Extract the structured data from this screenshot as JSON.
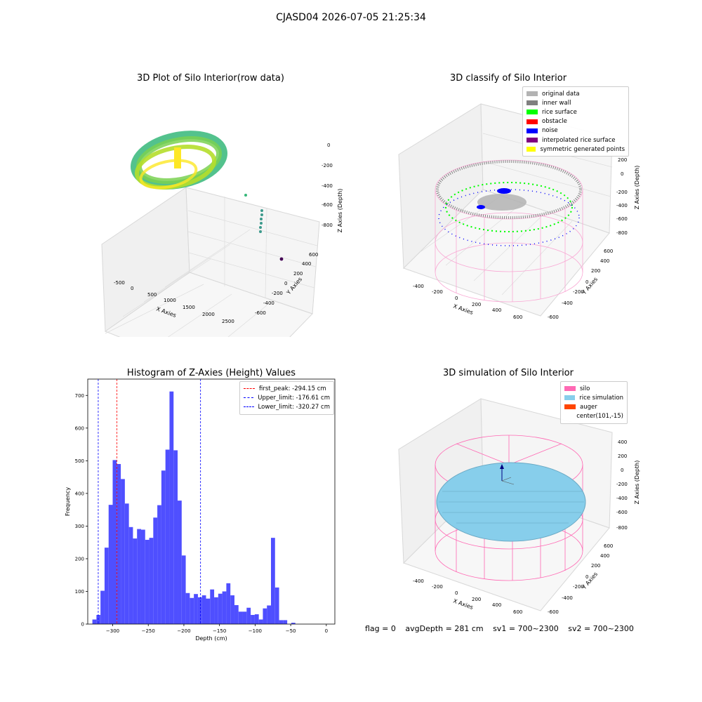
{
  "figure": {
    "title": "CJASD04 2026-07-05 21:25:34",
    "footer": {
      "flag": "flag = 0",
      "avg_depth": "avgDepth = 281 cm",
      "sv1": "sv1 = 700~2300",
      "sv2": "sv2 = 700~2300"
    }
  },
  "chart_data": [
    {
      "type": "scatter",
      "title": "3D Plot of Silo Interior(row data)",
      "xlabel": "X Axies",
      "ylabel": "Y Axies",
      "zlabel": "Z Axies (Depth)",
      "x_ticks": [
        "-500",
        "0",
        "500",
        "1000",
        "1500",
        "2000",
        "2500"
      ],
      "y_ticks": [
        "-600",
        "-400",
        "-200",
        "0",
        "200",
        "400",
        "600"
      ],
      "z_ticks": [
        "-800",
        "-600",
        "-400",
        "-200",
        "0"
      ],
      "colormap": "viridis (by depth)",
      "colors": {
        "shallow": "#fde725",
        "mid": "#7ad151",
        "deep": "#22a884",
        "outlier": "#440154"
      }
    },
    {
      "type": "scatter",
      "title": "3D classify of Silo Interior",
      "xlabel": "X Axies",
      "ylabel": "Y Axies",
      "zlabel": "Z Axies (Depth)",
      "x_ticks": [
        "-400",
        "-200",
        "0",
        "200",
        "400",
        "600"
      ],
      "y_ticks": [
        "-600",
        "-400",
        "-200",
        "0",
        "200",
        "400",
        "600"
      ],
      "z_ticks": [
        "-800",
        "-600",
        "-400",
        "-200",
        "0",
        "200"
      ],
      "legend": [
        {
          "label": "original data",
          "color": "#b3b3b3"
        },
        {
          "label": "inner wall",
          "color": "#808080"
        },
        {
          "label": "rice surface",
          "color": "#00ff00"
        },
        {
          "label": "obstacle",
          "color": "#ff0000"
        },
        {
          "label": "noise",
          "color": "#0000ff"
        },
        {
          "label": "interpolated rice surface",
          "color": "#800080"
        },
        {
          "label": "symmetric generated points",
          "color": "#ffff00"
        }
      ],
      "wireframe_color": "#f9a8d4"
    },
    {
      "type": "bar",
      "title": "Histogram of Z-Axies (Height) Values",
      "xlabel": "Depth (cm)",
      "ylabel": "Frequency",
      "xlim": [
        -335,
        12
      ],
      "ylim": [
        0,
        750
      ],
      "x_ticks": [
        -300,
        -250,
        -200,
        -150,
        -100,
        -50,
        0
      ],
      "y_ticks": [
        0,
        100,
        200,
        300,
        400,
        500,
        600,
        700
      ],
      "bar_color": "#4f4fff",
      "bin_width": 5.7,
      "bins": [
        {
          "x0": -328.5,
          "count": 14
        },
        {
          "x0": -322.8,
          "count": 28
        },
        {
          "x0": -317.1,
          "count": 102
        },
        {
          "x0": -311.4,
          "count": 234
        },
        {
          "x0": -305.7,
          "count": 365
        },
        {
          "x0": -300.0,
          "count": 502
        },
        {
          "x0": -294.3,
          "count": 490
        },
        {
          "x0": -288.6,
          "count": 444
        },
        {
          "x0": -282.9,
          "count": 369
        },
        {
          "x0": -277.2,
          "count": 297
        },
        {
          "x0": -271.5,
          "count": 262
        },
        {
          "x0": -265.8,
          "count": 291
        },
        {
          "x0": -260.1,
          "count": 289
        },
        {
          "x0": -254.4,
          "count": 258
        },
        {
          "x0": -248.7,
          "count": 264
        },
        {
          "x0": -243.0,
          "count": 326
        },
        {
          "x0": -237.3,
          "count": 364
        },
        {
          "x0": -231.6,
          "count": 470
        },
        {
          "x0": -225.9,
          "count": 534
        },
        {
          "x0": -220.2,
          "count": 712
        },
        {
          "x0": -214.5,
          "count": 532
        },
        {
          "x0": -208.8,
          "count": 378
        },
        {
          "x0": -203.1,
          "count": 210
        },
        {
          "x0": -197.4,
          "count": 95
        },
        {
          "x0": -191.7,
          "count": 80
        },
        {
          "x0": -186.0,
          "count": 92
        },
        {
          "x0": -180.3,
          "count": 82
        },
        {
          "x0": -174.6,
          "count": 88
        },
        {
          "x0": -168.9,
          "count": 78
        },
        {
          "x0": -163.2,
          "count": 106
        },
        {
          "x0": -157.5,
          "count": 82
        },
        {
          "x0": -151.8,
          "count": 93
        },
        {
          "x0": -146.1,
          "count": 100
        },
        {
          "x0": -140.4,
          "count": 125
        },
        {
          "x0": -134.7,
          "count": 88
        },
        {
          "x0": -129.0,
          "count": 58
        },
        {
          "x0": -123.3,
          "count": 38
        },
        {
          "x0": -117.6,
          "count": 38
        },
        {
          "x0": -111.9,
          "count": 50
        },
        {
          "x0": -106.2,
          "count": 28
        },
        {
          "x0": -100.5,
          "count": 30
        },
        {
          "x0": -94.8,
          "count": 14
        },
        {
          "x0": -89.1,
          "count": 48
        },
        {
          "x0": -83.4,
          "count": 57
        },
        {
          "x0": -77.7,
          "count": 264
        },
        {
          "x0": -72.0,
          "count": 112
        },
        {
          "x0": -66.3,
          "count": 12
        },
        {
          "x0": -60.6,
          "count": 12
        },
        {
          "x0": -54.9,
          "count": 0
        },
        {
          "x0": -49.2,
          "count": 4
        }
      ],
      "vlines": [
        {
          "label": "first_peak: -294.15 cm",
          "x": -294.15,
          "color": "#ff0000"
        },
        {
          "label": "Upper_limit: -176.61 cm",
          "x": -176.61,
          "color": "#0000ff"
        },
        {
          "label": "Lower_limit: -320.27 cm",
          "x": -320.27,
          "color": "#0000ff"
        }
      ]
    },
    {
      "type": "scatter",
      "title": "3D simulation of Silo Interior",
      "xlabel": "X Axies",
      "ylabel": "Y Axies",
      "zlabel": "Z Axies (Depth)",
      "x_ticks": [
        "-400",
        "-200",
        "0",
        "200",
        "400",
        "600"
      ],
      "y_ticks": [
        "-600",
        "-400",
        "-200",
        "0",
        "200",
        "400",
        "600"
      ],
      "z_ticks": [
        "-800",
        "-600",
        "-400",
        "-200",
        "0",
        "200",
        "400"
      ],
      "legend": [
        {
          "label": "silo",
          "color": "#ff69b4"
        },
        {
          "label": "rice simulation",
          "color": "#87ceeb"
        },
        {
          "label": "auger",
          "color": "#ff4500"
        },
        {
          "label": "center(101,-15)",
          "color": ""
        }
      ]
    }
  ]
}
